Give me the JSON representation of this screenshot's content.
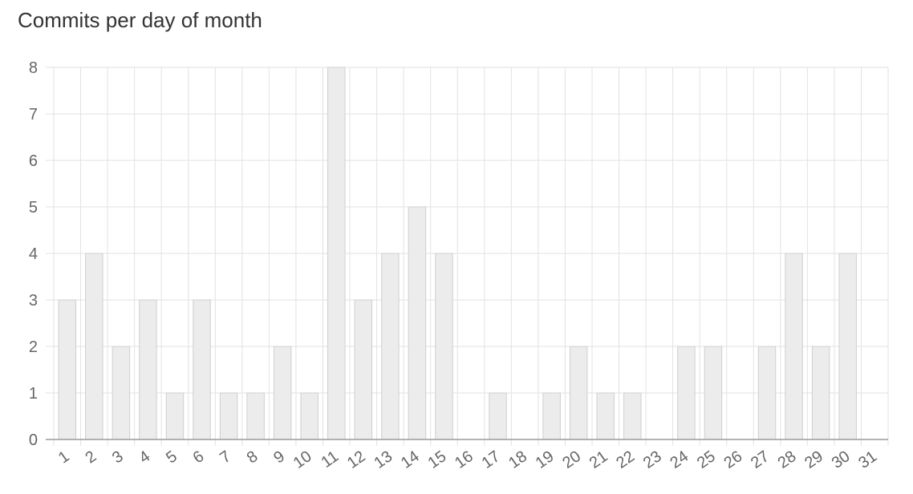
{
  "page": {
    "title": "Commits per day of month"
  },
  "chart_data": {
    "type": "bar",
    "title": "Commits per day of month",
    "xlabel": "",
    "ylabel": "",
    "categories": [
      "1",
      "2",
      "3",
      "4",
      "5",
      "6",
      "7",
      "8",
      "9",
      "10",
      "11",
      "12",
      "13",
      "14",
      "15",
      "16",
      "17",
      "18",
      "19",
      "20",
      "21",
      "22",
      "23",
      "24",
      "25",
      "26",
      "27",
      "28",
      "29",
      "30",
      "31"
    ],
    "values": [
      3,
      4,
      2,
      3,
      1,
      3,
      1,
      1,
      2,
      1,
      8,
      3,
      4,
      5,
      4,
      0,
      1,
      0,
      1,
      2,
      1,
      1,
      0,
      2,
      2,
      0,
      2,
      4,
      2,
      4,
      0
    ],
    "ylim": [
      0,
      8
    ],
    "yticks": [
      "0",
      "1",
      "2",
      "3",
      "4",
      "5",
      "6",
      "7",
      "8"
    ],
    "grid": true,
    "legend": "none",
    "colors": {
      "bar_fill": "#ececec",
      "bar_stroke": "#cfcfcf",
      "grid": "#e2e2e2",
      "axis": "#9a9a9a",
      "text": "#666666"
    }
  }
}
